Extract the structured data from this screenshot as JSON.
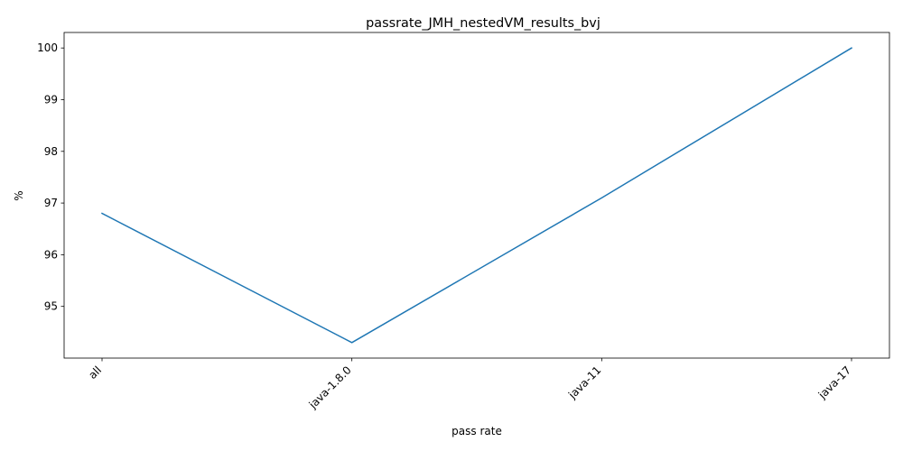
{
  "chart_data": {
    "type": "line",
    "title": "passrate_JMH_nestedVM_results_bvj",
    "xlabel": "pass rate",
    "ylabel": "%",
    "categories": [
      "all",
      "java-1.8.0",
      "java-11",
      "java-17"
    ],
    "series": [
      {
        "values": [
          96.8,
          94.3,
          97.1,
          100.0
        ]
      }
    ],
    "yticks": [
      95,
      96,
      97,
      98,
      99,
      100
    ],
    "ylim": [
      94.0,
      100.3
    ],
    "grid": false,
    "line_color": "#1f77b4"
  }
}
